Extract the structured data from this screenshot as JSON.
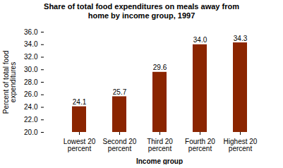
{
  "chart_data": {
    "type": "bar",
    "title": "Share of total food expenditures on meals away from\nhome by income group, 1997",
    "categories": [
      "Lowest 20\npercent",
      "Second 20\npercent",
      "Third 20\npercent",
      "Fourth 20\npercent",
      "Highest 20\npercent"
    ],
    "values": [
      24.1,
      25.7,
      29.6,
      34.0,
      34.3
    ],
    "value_labels": [
      "24.1",
      "25.7",
      "29.6",
      "34.0",
      "34.3"
    ],
    "data_labels": true,
    "color": "#8B2500",
    "xlabel": "Income group",
    "ylabel": "Percent of total food\nexpenditures",
    "ylim": [
      20.0,
      36.0
    ],
    "yticks": [
      {
        "value": 20,
        "label": "20.0"
      },
      {
        "value": 22,
        "label": "22.0"
      },
      {
        "value": 24,
        "label": "24.0"
      },
      {
        "value": 26,
        "label": "26.0"
      },
      {
        "value": 28,
        "label": "28.0"
      },
      {
        "value": 30,
        "label": "30.0"
      },
      {
        "value": 32,
        "label": "32.0"
      },
      {
        "value": 34,
        "label": "34.0"
      },
      {
        "value": 36,
        "label": "36.0"
      }
    ],
    "grid": false
  }
}
